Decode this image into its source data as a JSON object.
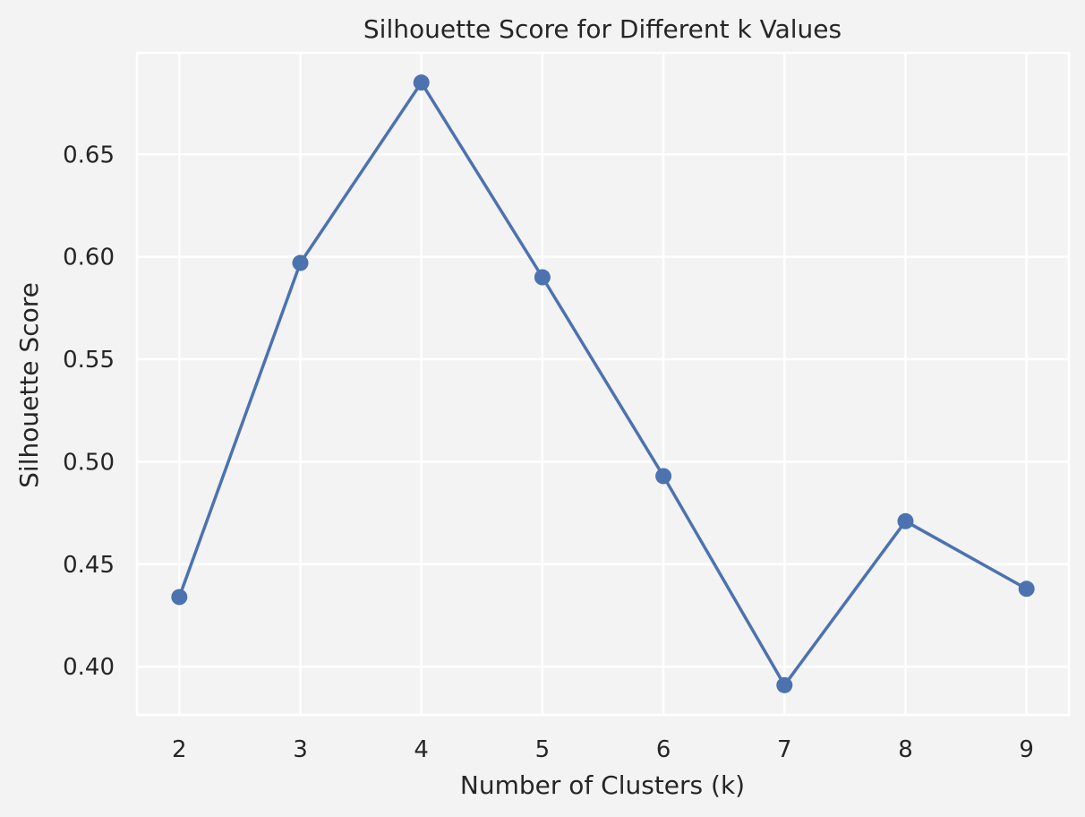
{
  "chart_data": {
    "type": "line",
    "title": "Silhouette Score for Different k Values",
    "xlabel": "Number of Clusters (k)",
    "ylabel": "Silhouette Score",
    "x": [
      2,
      3,
      4,
      5,
      6,
      7,
      8,
      9
    ],
    "series": [
      {
        "values": [
          0.434,
          0.597,
          0.685,
          0.59,
          0.493,
          0.391,
          0.471,
          0.438
        ],
        "color": "#4c72b0",
        "marker": "circle"
      }
    ],
    "xticks": [
      "2",
      "3",
      "4",
      "5",
      "6",
      "7",
      "8",
      "9"
    ],
    "yticks": [
      "0.40",
      "0.45",
      "0.50",
      "0.55",
      "0.60",
      "0.65"
    ],
    "xlim": [
      1.65,
      9.35
    ],
    "ylim": [
      0.3765,
      0.6995
    ],
    "grid": true,
    "background": "#f3f3f3",
    "grid_color": "#ffffff",
    "text_color": "#262626"
  }
}
